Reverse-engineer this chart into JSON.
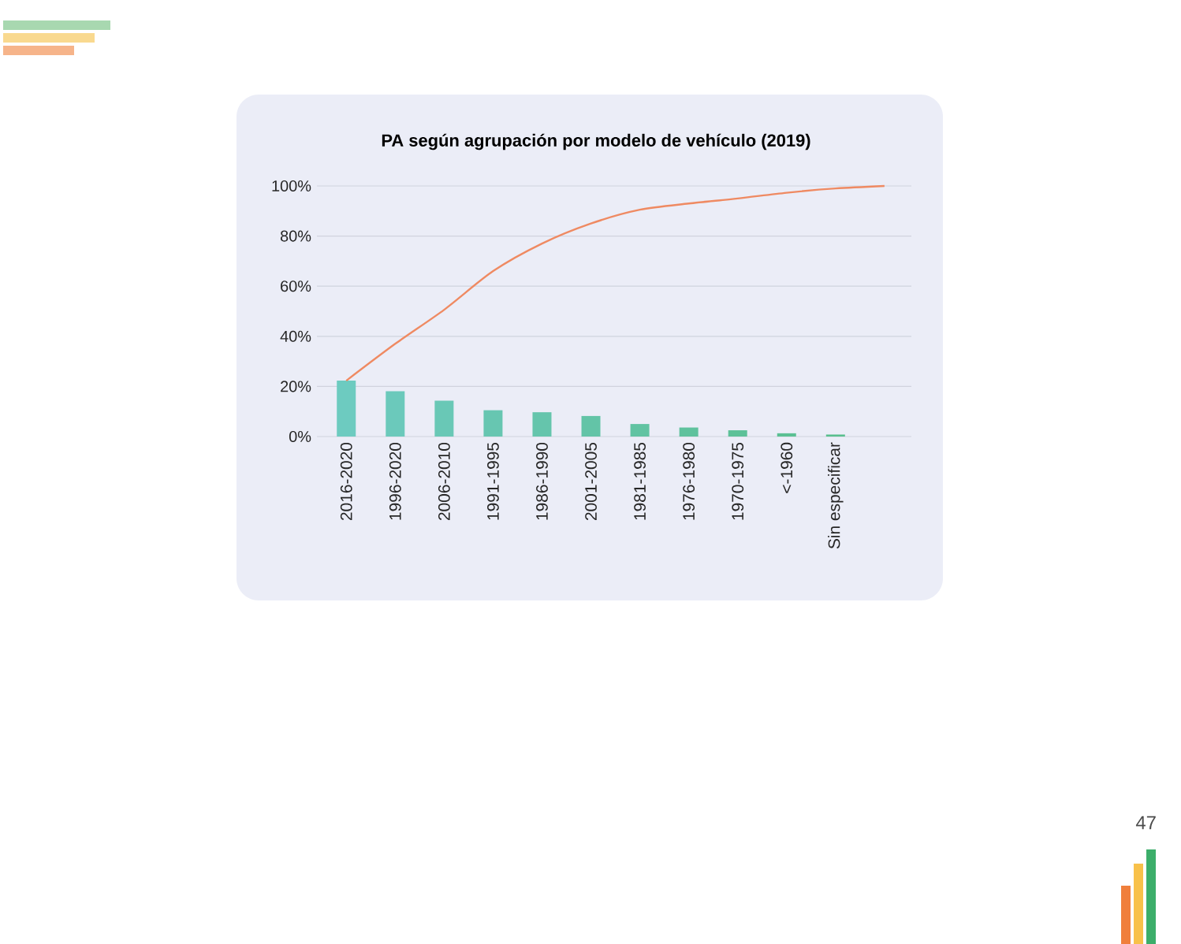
{
  "chart_data": {
    "type": "bar",
    "title": "PA según agrupación por modelo de vehículo (2019)",
    "categories": [
      "2016-2020",
      "1996-2020",
      "2006-2010",
      "1991-1995",
      "1986-1990",
      "2001-2005",
      "1981-1985",
      "1976-1980",
      "1970-1975",
      "<-1960",
      "Sin especificar",
      null
    ],
    "series": [
      {
        "colors": [
          "#6dcbc0",
          "#6bc9bb",
          "#69c8b6",
          "#67c6b1",
          "#65c5ac",
          "#63c4a7",
          "#61c3a2",
          "#5fc29d",
          "#5dc198",
          "#5bc093",
          "#59bf8e",
          "#57be89"
        ],
        "values": [
          22.3,
          18.1,
          14.3,
          10.5,
          9.7,
          8.2,
          5.0,
          3.6,
          2.5,
          1.3,
          0.8,
          null
        ]
      },
      {
        "type": "line",
        "color": "#ef8a62",
        "values": [
          22.3,
          37,
          50.6,
          66,
          77,
          85,
          90.5,
          93,
          95,
          97.3,
          99,
          100
        ]
      }
    ],
    "ylim": [
      0,
      100
    ],
    "yticks": [
      {
        "value": 0,
        "label": "0%"
      },
      {
        "value": 20,
        "label": "20%"
      },
      {
        "value": 40,
        "label": "40%"
      },
      {
        "value": 60,
        "label": "60%"
      },
      {
        "value": 80,
        "label": "80%"
      },
      {
        "value": 100,
        "label": "100%"
      }
    ],
    "grid": "y",
    "annotations": [
      "47"
    ]
  }
}
